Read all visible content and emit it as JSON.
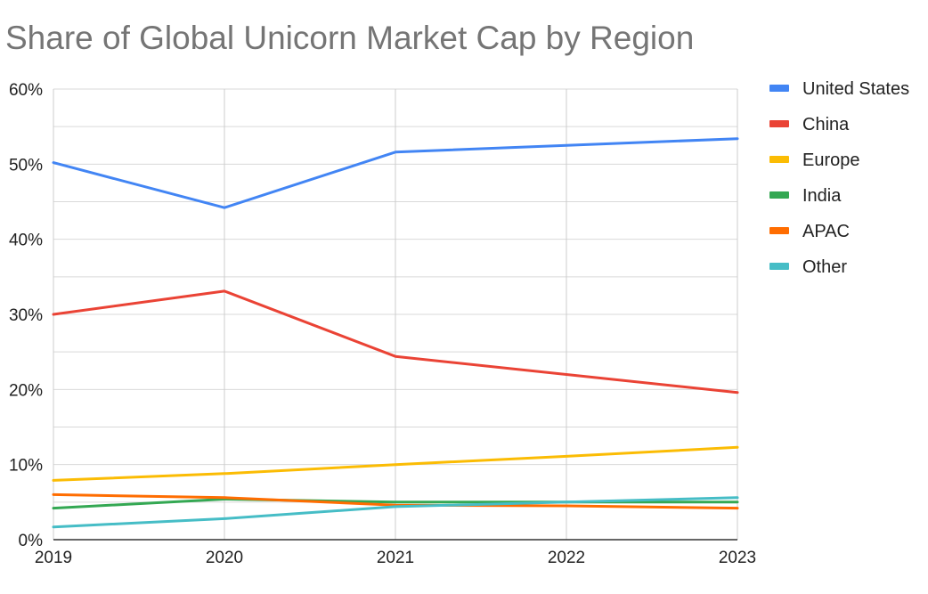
{
  "chart_data": {
    "type": "line",
    "title": "Share of Global Unicorn Market Cap by Region",
    "xlabel": "",
    "ylabel": "",
    "x": [
      "2019",
      "2020",
      "2021",
      "2022",
      "2023"
    ],
    "ylim": [
      0,
      60
    ],
    "yticks": [
      0,
      10,
      20,
      30,
      40,
      50,
      60
    ],
    "ytick_labels": [
      "0%",
      "10%",
      "20%",
      "30%",
      "40%",
      "50%",
      "60%"
    ],
    "grid": true,
    "legend_position": "right",
    "series": [
      {
        "name": "United States",
        "color": "#4285F4",
        "values": [
          50.2,
          44.2,
          51.6,
          52.5,
          53.4
        ]
      },
      {
        "name": "China",
        "color": "#EA4335",
        "values": [
          30.0,
          33.1,
          24.4,
          22.0,
          19.6
        ]
      },
      {
        "name": "Europe",
        "color": "#FBBC04",
        "values": [
          7.9,
          8.8,
          10.0,
          11.1,
          12.3
        ]
      },
      {
        "name": "India",
        "color": "#34A853",
        "values": [
          4.2,
          5.4,
          5.0,
          5.0,
          5.0
        ]
      },
      {
        "name": "APAC",
        "color": "#FF6D01",
        "values": [
          6.0,
          5.6,
          4.6,
          4.5,
          4.2
        ]
      },
      {
        "name": "Other",
        "color": "#46BDC6",
        "values": [
          1.7,
          2.8,
          4.4,
          5.0,
          5.6
        ]
      }
    ]
  }
}
